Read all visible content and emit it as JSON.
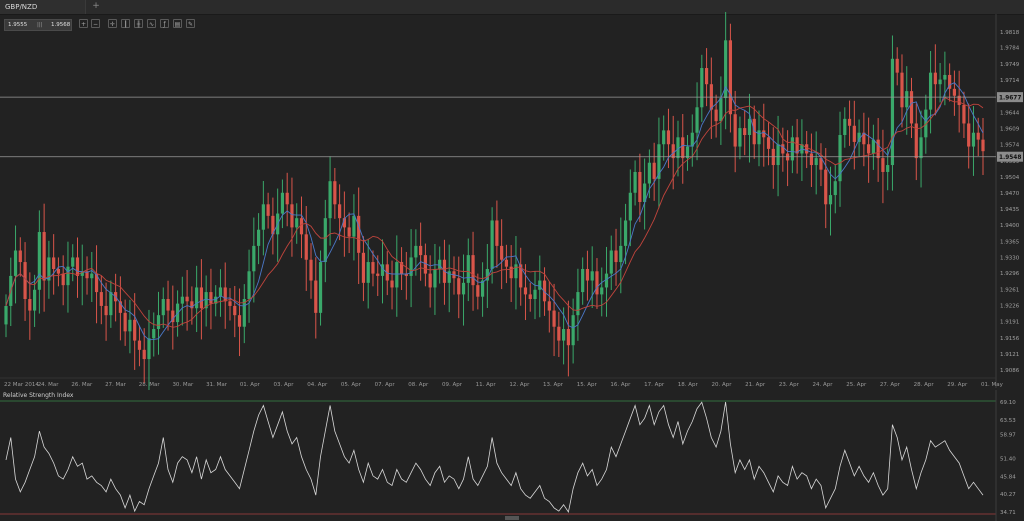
{
  "tab": {
    "label": "GBP/NZD",
    "add_label": "+"
  },
  "toolbar": {
    "bid": "1.9555",
    "sep": "|||",
    "ask": "1.9568",
    "tools": [
      "zoom-in-icon",
      "zoom-out-icon",
      "crosshair-icon",
      "candle-type-icon",
      "bar-type-icon",
      "line-type-icon",
      "indicators-icon",
      "template-icon",
      "drawing-icon"
    ]
  },
  "colors": {
    "bull": "#3aa86a",
    "bear": "#d9554a",
    "ma_fast": "#4b78c8",
    "ma_slow": "#c0443c",
    "rsi": "#d8d8d8",
    "hline": "#9a9a9a"
  },
  "chart_data": [
    {
      "type": "candlestick",
      "symbol": "GBP/NZD",
      "ylim": [
        1.9069,
        1.9818
      ],
      "y_ticks": [
        "1.9818",
        "1.9784",
        "1.9749",
        "1.9714",
        "1.9644",
        "1.9609",
        "1.9574",
        "1.9539",
        "1.9504",
        "1.9470",
        "1.9435",
        "1.9400",
        "1.9365",
        "1.9330",
        "1.9296",
        "1.9261",
        "1.9226",
        "1.9191",
        "1.9156",
        "1.9121",
        "1.9086"
      ],
      "x_ticks": [
        "22 Mar 2014",
        "24. Mar",
        "26. Mar",
        "27. Mar",
        "28. Mar",
        "30. Mar",
        "31. Mar",
        "01. Apr",
        "03. Apr",
        "04. Apr",
        "05. Apr",
        "07. Apr",
        "08. Apr",
        "09. Apr",
        "11. Apr",
        "12. Apr",
        "13. Apr",
        "15. Apr",
        "16. Apr",
        "17. Apr",
        "18. Apr",
        "20. Apr",
        "21. Apr",
        "23. Apr",
        "24. Apr",
        "25. Apr",
        "27. Apr",
        "28. Apr",
        "29. Apr",
        "01. May"
      ],
      "horizontal_lines": [
        {
          "value": 1.9677,
          "label": "1.9677"
        },
        {
          "value": 1.9548,
          "label": "1.9548"
        }
      ],
      "close": [
        1.9225,
        1.929,
        1.9345,
        1.932,
        1.924,
        1.9215,
        1.926,
        1.9385,
        1.928,
        1.933,
        1.9305,
        1.9295,
        1.927,
        1.931,
        1.933,
        1.929,
        1.93,
        1.9285,
        1.9295,
        1.9255,
        1.9225,
        1.9205,
        1.9255,
        1.9235,
        1.921,
        1.917,
        1.9195,
        1.915,
        1.913,
        1.911,
        1.9155,
        1.9175,
        1.9205,
        1.924,
        1.9215,
        1.919,
        1.923,
        1.9245,
        1.9235,
        1.922,
        1.9265,
        1.922,
        1.9255,
        1.923,
        1.9245,
        1.9265,
        1.9235,
        1.9225,
        1.9205,
        1.918,
        1.924,
        1.93,
        1.9355,
        1.939,
        1.9445,
        1.942,
        1.938,
        1.9425,
        1.947,
        1.9445,
        1.9395,
        1.9415,
        1.938,
        1.9325,
        1.928,
        1.921,
        1.932,
        1.9415,
        1.9495,
        1.9445,
        1.9415,
        1.9395,
        1.9375,
        1.942,
        1.934,
        1.9275,
        1.932,
        1.9295,
        1.929,
        1.9315,
        1.928,
        1.9265,
        1.932,
        1.9295,
        1.929,
        1.933,
        1.9355,
        1.9335,
        1.9295,
        1.9265,
        1.9305,
        1.9325,
        1.9275,
        1.93,
        1.9285,
        1.925,
        1.9275,
        1.9335,
        1.927,
        1.9245,
        1.928,
        1.9305,
        1.941,
        1.9355,
        1.9325,
        1.931,
        1.9285,
        1.9315,
        1.9265,
        1.925,
        1.924,
        1.926,
        1.928,
        1.9235,
        1.9215,
        1.918,
        1.915,
        1.9175,
        1.914,
        1.9205,
        1.9255,
        1.9305,
        1.928,
        1.93,
        1.925,
        1.9265,
        1.9295,
        1.9345,
        1.932,
        1.9355,
        1.941,
        1.947,
        1.9515,
        1.945,
        1.949,
        1.9535,
        1.95,
        1.9575,
        1.9605,
        1.9575,
        1.9545,
        1.959,
        1.9545,
        1.957,
        1.96,
        1.9655,
        1.974,
        1.9705,
        1.965,
        1.9625,
        1.9675,
        1.98,
        1.964,
        1.957,
        1.961,
        1.9595,
        1.963,
        1.9575,
        1.9605,
        1.959,
        1.9565,
        1.953,
        1.9575,
        1.9555,
        1.954,
        1.959,
        1.9555,
        1.9575,
        1.9555,
        1.953,
        1.9545,
        1.952,
        1.9445,
        1.9465,
        1.9495,
        1.9595,
        1.963,
        1.9615,
        1.958,
        1.96,
        1.9575,
        1.9555,
        1.9585,
        1.9545,
        1.9515,
        1.953,
        1.976,
        1.973,
        1.9655,
        1.969,
        1.962,
        1.9545,
        1.959,
        1.965,
        1.973,
        1.9705,
        1.9715,
        1.9725,
        1.9695,
        1.968,
        1.966,
        1.962,
        1.957,
        1.96,
        1.9585,
        1.956
      ]
    },
    {
      "type": "line",
      "title": "Relative Strength Index",
      "ylim": [
        34.71,
        69.1
      ],
      "y_ticks": [
        "69.10",
        "63.53",
        "58.97",
        "51.40",
        "45.84",
        "40.27",
        "34.71"
      ],
      "series": [
        {
          "name": "Relative Strength Index",
          "values": [
            51,
            58,
            45,
            41,
            44,
            48,
            52,
            60,
            55,
            53,
            50,
            46,
            45,
            48,
            52,
            49,
            50,
            45,
            46,
            44,
            43,
            41,
            45,
            42,
            40,
            36,
            40,
            35,
            38,
            37,
            42,
            46,
            50,
            58,
            48,
            44,
            50,
            52,
            51,
            47,
            52,
            45,
            51,
            47,
            48,
            52,
            48,
            46,
            44,
            42,
            48,
            54,
            60,
            65,
            68,
            63,
            58,
            62,
            66,
            60,
            56,
            58,
            52,
            48,
            45,
            40,
            52,
            60,
            68,
            60,
            56,
            52,
            50,
            54,
            48,
            44,
            50,
            46,
            45,
            48,
            44,
            43,
            48,
            45,
            44,
            47,
            50,
            48,
            45,
            43,
            47,
            49,
            44,
            46,
            45,
            42,
            45,
            52,
            45,
            43,
            46,
            49,
            58,
            50,
            47,
            45,
            43,
            47,
            42,
            40,
            39,
            41,
            43,
            39,
            38,
            36,
            35,
            37,
            34,
            42,
            47,
            50,
            46,
            48,
            43,
            45,
            48,
            55,
            52,
            56,
            60,
            64,
            68,
            62,
            64,
            68,
            62,
            66,
            68,
            62,
            58,
            63,
            56,
            60,
            63,
            67,
            69,
            64,
            58,
            55,
            60,
            70,
            56,
            47,
            51,
            48,
            51,
            45,
            49,
            47,
            44,
            41,
            46,
            44,
            43,
            49,
            45,
            47,
            46,
            42,
            45,
            43,
            36,
            39,
            42,
            49,
            54,
            50,
            46,
            49,
            46,
            44,
            47,
            43,
            40,
            42,
            62,
            58,
            51,
            55,
            48,
            42,
            47,
            51,
            57,
            55,
            56,
            57,
            54,
            52,
            50,
            46,
            42,
            44,
            42,
            40
          ]
        }
      ]
    }
  ]
}
